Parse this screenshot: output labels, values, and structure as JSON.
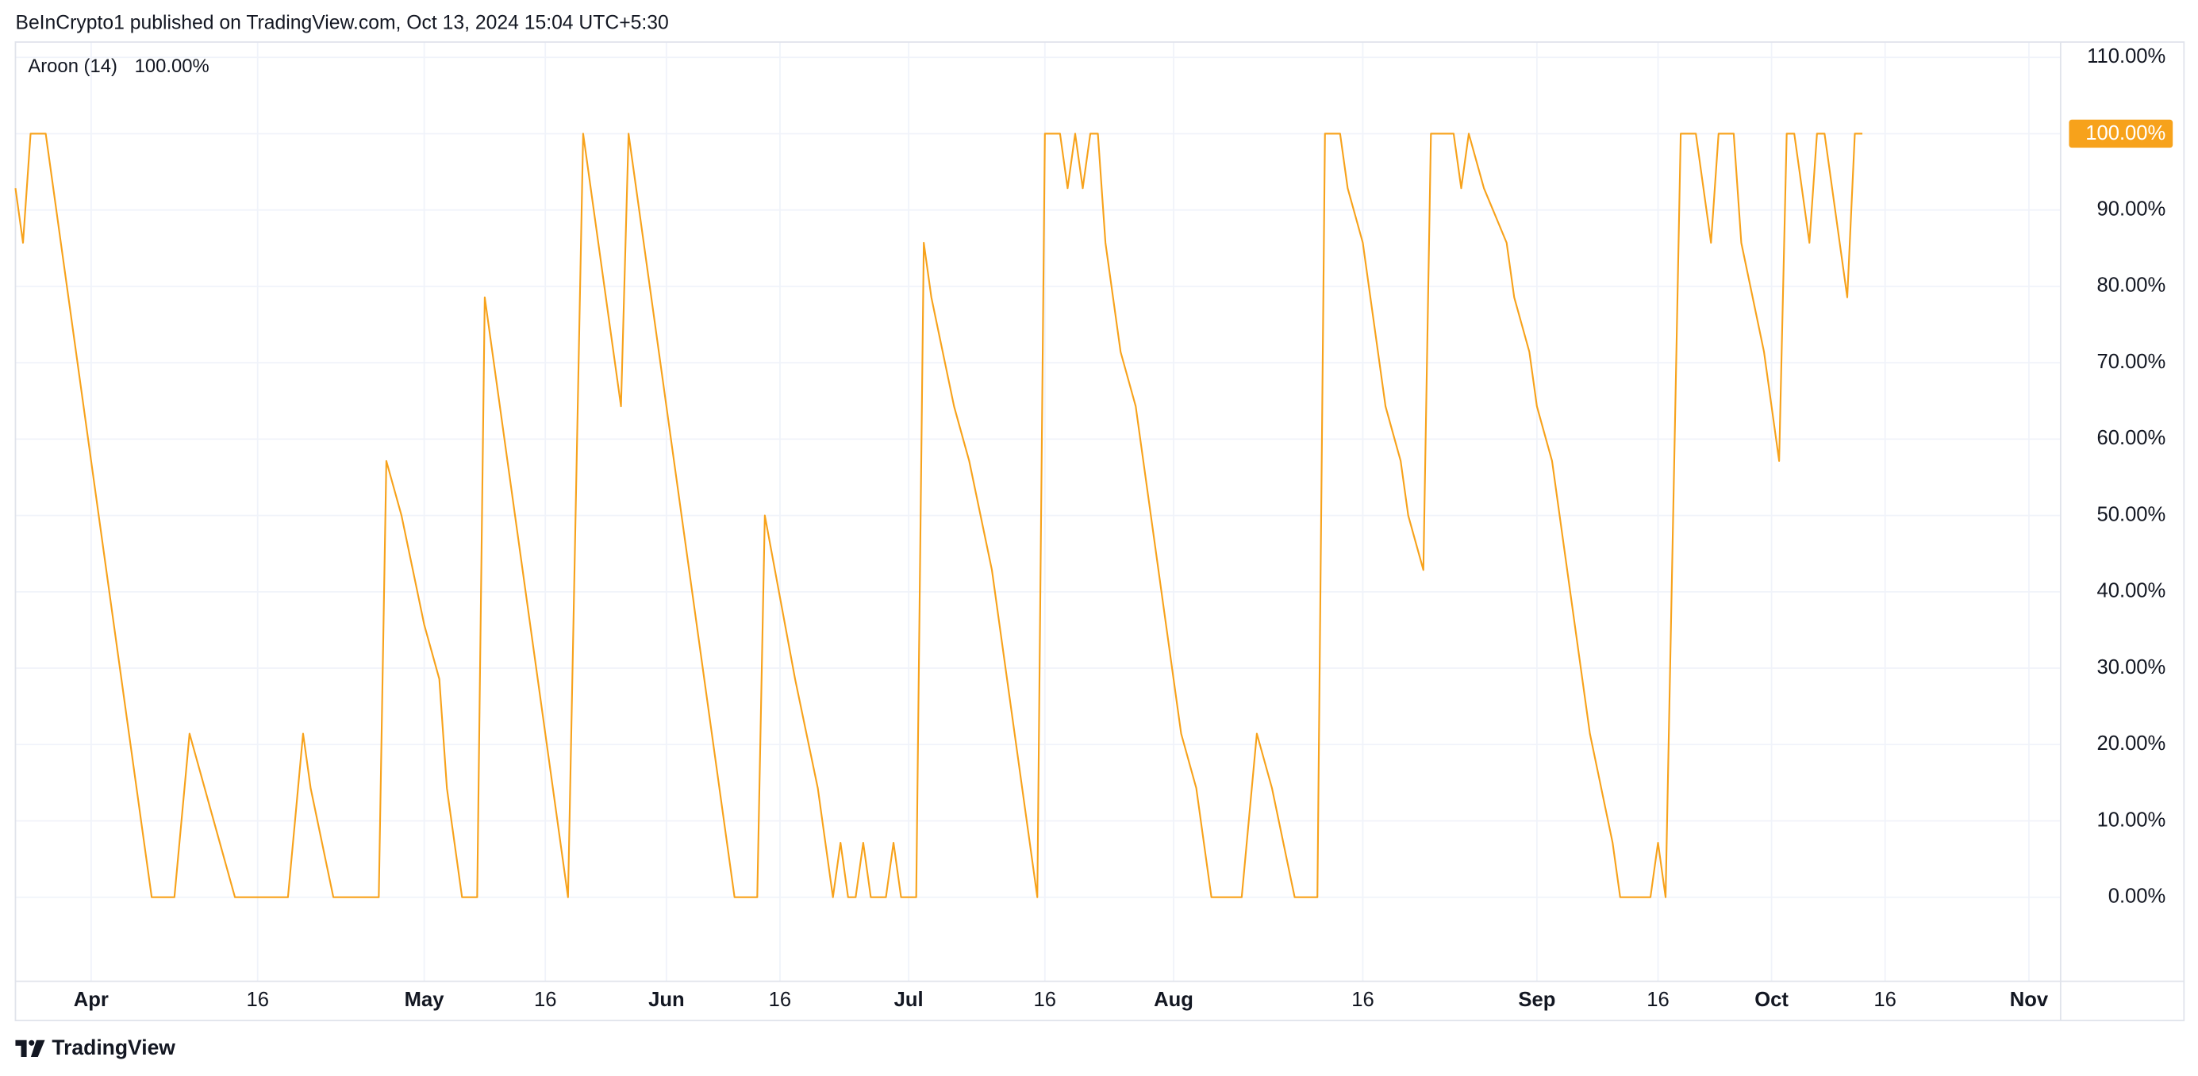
{
  "header": "BeInCrypto1 published on TradingView.com, Oct 13, 2024 15:04 UTC+5:30",
  "brand": "TradingView",
  "chart_data": {
    "type": "line",
    "series": [
      {
        "name": "Aroon (14)",
        "color": "#f7a21b",
        "values": [
          92.86,
          85.71,
          100,
          100,
          100,
          92.86,
          85.71,
          78.57,
          71.43,
          64.29,
          57.14,
          50,
          42.86,
          35.71,
          28.57,
          21.43,
          14.29,
          7.14,
          0,
          0,
          0,
          0,
          10.71,
          21.43,
          17.86,
          14.29,
          10.71,
          7.14,
          3.57,
          0,
          0,
          0,
          0,
          0,
          0,
          0,
          0,
          10.71,
          21.43,
          14.29,
          9.52,
          4.76,
          0,
          0,
          0,
          0,
          0,
          0,
          0,
          57.14,
          53.57,
          50,
          45.24,
          40.48,
          35.71,
          32.14,
          28.57,
          14.29,
          7.14,
          0,
          0,
          0,
          78.57,
          71.43,
          64.29,
          57.14,
          50,
          42.86,
          35.71,
          28.57,
          21.43,
          14.29,
          7.14,
          0,
          50,
          100,
          92.86,
          85.71,
          78.57,
          71.43,
          64.29,
          100,
          92.86,
          85.71,
          78.57,
          71.43,
          64.29,
          57.14,
          50,
          42.86,
          35.71,
          28.57,
          21.43,
          14.29,
          7.14,
          0,
          0,
          0,
          0,
          50,
          44.64,
          39.29,
          33.93,
          28.57,
          23.81,
          19.05,
          14.29,
          7.14,
          0,
          7.14,
          0,
          0,
          7.14,
          0,
          0,
          0,
          7.14,
          0,
          0,
          0,
          85.71,
          78.57,
          73.81,
          69.05,
          64.29,
          60.71,
          57.14,
          52.38,
          47.62,
          42.86,
          35.71,
          28.57,
          21.43,
          14.29,
          7.14,
          0,
          100,
          100,
          100,
          92.86,
          100,
          92.86,
          100,
          100,
          85.71,
          78.57,
          71.43,
          67.86,
          64.29,
          57.14,
          50,
          42.86,
          35.71,
          28.57,
          21.43,
          17.86,
          14.29,
          7.14,
          0,
          0,
          0,
          0,
          0,
          10.71,
          21.43,
          17.86,
          14.29,
          9.52,
          4.76,
          0,
          0,
          0,
          0,
          100,
          100,
          100,
          92.86,
          89.29,
          85.71,
          78.57,
          71.43,
          64.29,
          60.71,
          57.14,
          50,
          46.43,
          42.86,
          100,
          100,
          100,
          100,
          92.86,
          100,
          96.43,
          92.86,
          90.48,
          88.1,
          85.71,
          78.57,
          75,
          71.43,
          64.29,
          60.71,
          57.14,
          50,
          42.86,
          35.71,
          28.57,
          21.43,
          16.67,
          11.9,
          7.14,
          0,
          0,
          0,
          0,
          0,
          7.14,
          0,
          50,
          100,
          100,
          100,
          92.86,
          85.71,
          100,
          100,
          100,
          85.71,
          80.95,
          76.19,
          71.43,
          64.29,
          57.14,
          100,
          100,
          92.86,
          85.71,
          100,
          100,
          92.86,
          85.71,
          78.57,
          100,
          100,
          null,
          null,
          null,
          null,
          null,
          null,
          null,
          null,
          null,
          null,
          null,
          null,
          null,
          null,
          null,
          null,
          null,
          null,
          null,
          null,
          null,
          null,
          null,
          null,
          null,
          null
        ]
      }
    ],
    "categories": [
      null,
      null,
      null,
      null,
      null,
      null,
      null,
      null,
      null,
      null,
      "Apr",
      null,
      null,
      null,
      null,
      null,
      null,
      null,
      null,
      null,
      null,
      null,
      null,
      null,
      null,
      null,
      null,
      null,
      null,
      null,
      null,
      null,
      "16",
      null,
      null,
      null,
      null,
      null,
      null,
      null,
      null,
      null,
      null,
      null,
      null,
      null,
      null,
      null,
      null,
      null,
      null,
      null,
      null,
      null,
      "May",
      null,
      null,
      null,
      null,
      null,
      null,
      null,
      null,
      null,
      null,
      null,
      null,
      null,
      null,
      null,
      "16",
      null,
      null,
      null,
      null,
      null,
      null,
      null,
      null,
      null,
      null,
      null,
      null,
      null,
      null,
      null,
      "Jun",
      null,
      null,
      null,
      null,
      null,
      null,
      null,
      null,
      null,
      null,
      null,
      null,
      null,
      null,
      "16",
      null,
      null,
      null,
      null,
      null,
      null,
      null,
      null,
      null,
      null,
      null,
      null,
      null,
      null,
      null,
      null,
      "Jul",
      null,
      null,
      null,
      null,
      null,
      null,
      null,
      null,
      null,
      null,
      null,
      null,
      null,
      null,
      null,
      null,
      null,
      "16",
      null,
      null,
      null,
      null,
      null,
      null,
      null,
      null,
      null,
      null,
      null,
      null,
      null,
      null,
      null,
      null,
      "Aug",
      null,
      null,
      null,
      null,
      null,
      null,
      null,
      null,
      null,
      null,
      null,
      null,
      null,
      null,
      null,
      null,
      null,
      null,
      null,
      null,
      null,
      null,
      null,
      null,
      "16",
      null,
      null,
      null,
      null,
      null,
      null,
      null,
      null,
      null,
      null,
      null,
      null,
      null,
      null,
      null,
      null,
      null,
      null,
      null,
      null,
      null,
      null,
      "Sep",
      null,
      null,
      null,
      null,
      null,
      null,
      null,
      null,
      null,
      null,
      null,
      null,
      null,
      null,
      null,
      "16",
      null,
      null,
      null,
      null,
      null,
      null,
      null,
      null,
      null,
      null,
      null,
      null,
      null,
      null,
      "Oct",
      null,
      null,
      null,
      null,
      null,
      null,
      null,
      null,
      null,
      null,
      null,
      null,
      null,
      null,
      "16",
      null,
      null,
      null,
      null,
      null,
      null,
      null,
      null,
      null,
      null,
      null,
      null,
      null,
      null,
      null,
      null,
      null,
      null,
      "Nov",
      null,
      null,
      null,
      null
    ],
    "last_value": {
      "value": 100,
      "label": "100.00%"
    },
    "ylim": [
      -11,
      112
    ],
    "yticks": [
      {
        "value": 0,
        "label": "0.00%"
      },
      {
        "value": 10,
        "label": "10.00%"
      },
      {
        "value": 20,
        "label": "20.00%"
      },
      {
        "value": 30,
        "label": "30.00%"
      },
      {
        "value": 40,
        "label": "40.00%"
      },
      {
        "value": 50,
        "label": "50.00%"
      },
      {
        "value": 60,
        "label": "60.00%"
      },
      {
        "value": 70,
        "label": "70.00%"
      },
      {
        "value": 80,
        "label": "80.00%"
      },
      {
        "value": 90,
        "label": "90.00%"
      },
      {
        "value": 100,
        "label": "100.00%"
      },
      {
        "value": 110,
        "label": "110.00%"
      }
    ],
    "grid": true
  }
}
